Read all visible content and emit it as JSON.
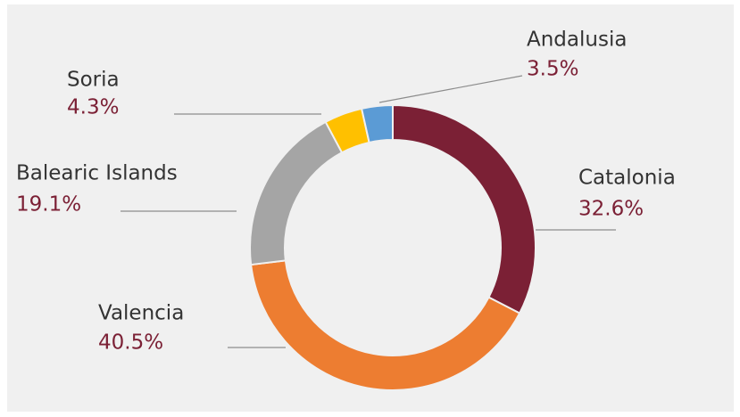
{
  "chart_data": {
    "type": "donut",
    "categories": [
      "Catalonia",
      "Valencia",
      "Balearic Islands",
      "Soria",
      "Andalusia"
    ],
    "values": [
      32.6,
      40.5,
      19.1,
      4.3,
      3.5
    ],
    "value_labels": [
      "32.6%",
      "40.5%",
      "19.1%",
      "4.3%",
      "3.5%"
    ],
    "colors": [
      "#7b2035",
      "#ed7d31",
      "#a5a5a5",
      "#ffc000",
      "#5b9bd5"
    ]
  }
}
